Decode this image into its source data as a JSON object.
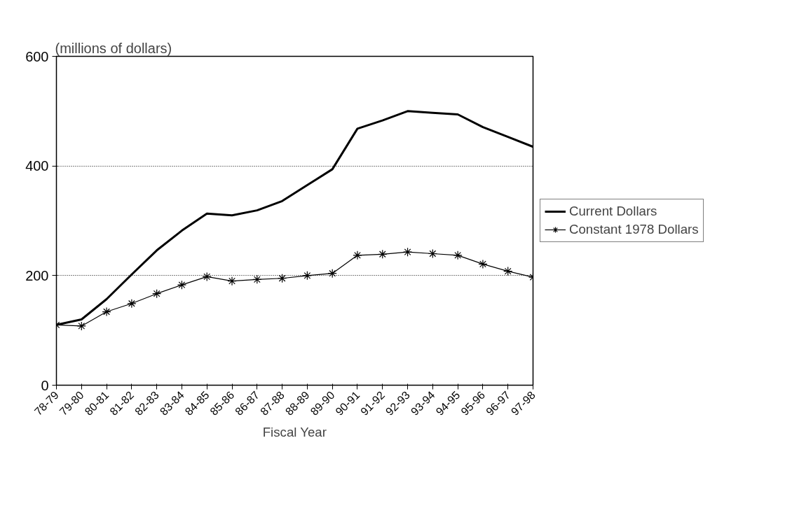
{
  "chart_data": {
    "type": "line",
    "ylabel": "(millions of dollars)",
    "xlabel": "Fiscal Year",
    "categories": [
      "78-79",
      "79-80",
      "80-81",
      "81-82",
      "82-83",
      "83-84",
      "84-85",
      "85-86",
      "86-87",
      "87-88",
      "88-89",
      "89-90",
      "90-91",
      "91-92",
      "92-93",
      "93-94",
      "94-95",
      "95-96",
      "96-97",
      "97-98"
    ],
    "series": [
      {
        "name": "Current Dollars",
        "color": "#000000",
        "marker": "none",
        "values": [
          110,
          120,
          157,
          202,
          246,
          282,
          313,
          310,
          319,
          336,
          365,
          394,
          468,
          483,
          500,
          497,
          494,
          471,
          453,
          435
        ]
      },
      {
        "name": "Constant 1978 Dollars",
        "color": "#000000",
        "marker": "cross",
        "values": [
          110,
          108,
          134,
          149,
          167,
          183,
          198,
          190,
          193,
          195,
          200,
          204,
          237,
          239,
          243,
          240,
          237,
          221,
          208,
          197
        ]
      }
    ],
    "ylim": [
      0,
      600
    ],
    "yticks": [
      0,
      200,
      400,
      600
    ],
    "grid": "y",
    "legend": "right",
    "line_style": "solid"
  }
}
